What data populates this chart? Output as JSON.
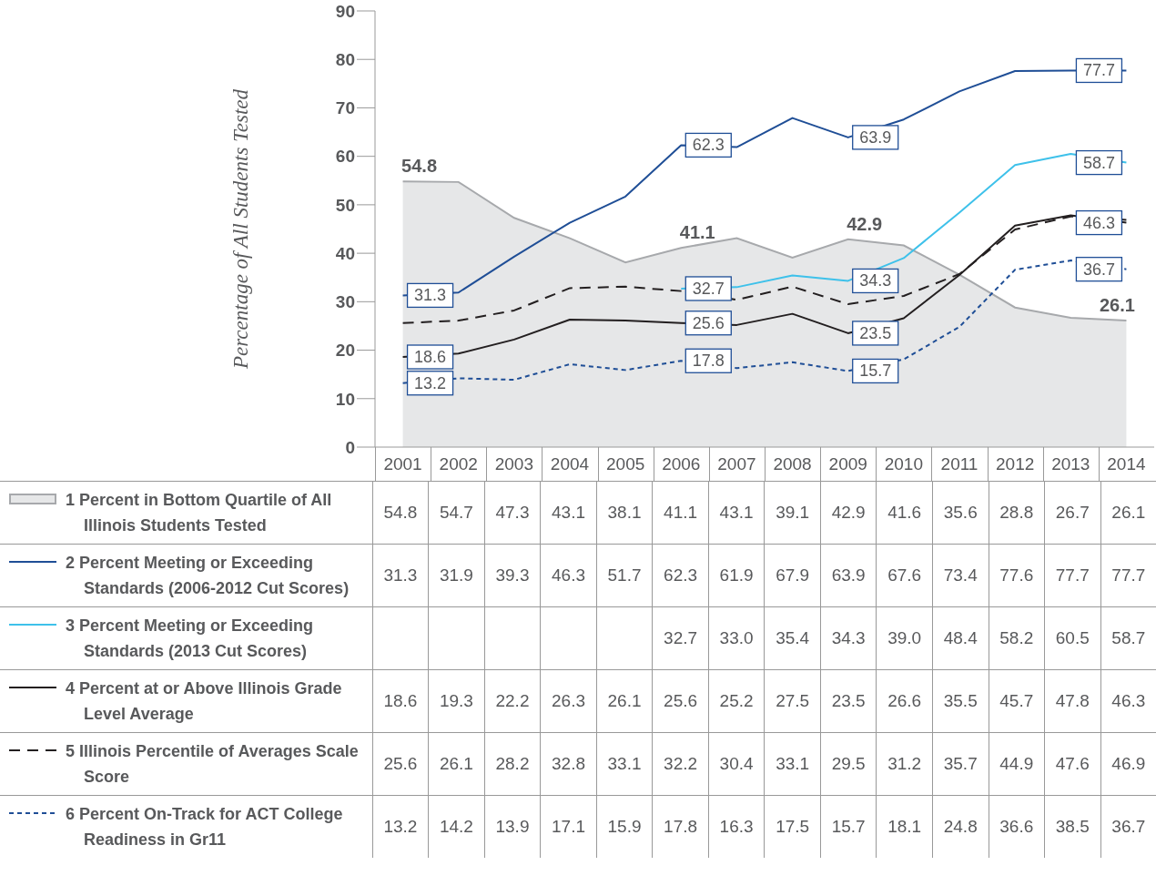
{
  "chart_data": {
    "type": "line",
    "ylabel": "Percentage of All Students Tested",
    "categories": [
      "2001",
      "2002",
      "2003",
      "2004",
      "2005",
      "2006",
      "2007",
      "2008",
      "2009",
      "2010",
      "2011",
      "2012",
      "2013",
      "2014"
    ],
    "ylim": [
      0,
      90
    ],
    "yticks": [
      0,
      10,
      20,
      30,
      40,
      50,
      60,
      70,
      80,
      90
    ],
    "legend": "bottom",
    "data_labels": true,
    "annotations": [
      {
        "text": "54.8",
        "x": "2001",
        "y": 54.8
      },
      {
        "text": "41.1",
        "x": "2006",
        "y": 41.1
      },
      {
        "text": "42.9",
        "x": "2009",
        "y": 42.9
      },
      {
        "text": "26.1",
        "x": "2014",
        "y": 26.1
      },
      {
        "text": "31.3",
        "x": "2001",
        "y": 31.3
      },
      {
        "text": "62.3",
        "x": "2006",
        "y": 62.3
      },
      {
        "text": "63.9",
        "x": "2009",
        "y": 63.9
      },
      {
        "text": "77.7",
        "x": "2014",
        "y": 77.7
      },
      {
        "text": "32.7",
        "x": "2006",
        "y": 32.7
      },
      {
        "text": "34.3",
        "x": "2009",
        "y": 34.3
      },
      {
        "text": "58.7",
        "x": "2014",
        "y": 58.7
      },
      {
        "text": "18.6",
        "x": "2001",
        "y": 18.6
      },
      {
        "text": "25.6",
        "x": "2006",
        "y": 25.6
      },
      {
        "text": "23.5",
        "x": "2009",
        "y": 23.5
      },
      {
        "text": "46.3",
        "x": "2014",
        "y": 46.3
      },
      {
        "text": "13.2",
        "x": "2001",
        "y": 13.2
      },
      {
        "text": "17.8",
        "x": "2006",
        "y": 17.8
      },
      {
        "text": "15.7",
        "x": "2009",
        "y": 15.7
      },
      {
        "text": "36.7",
        "x": "2014",
        "y": 36.7
      }
    ],
    "series": [
      {
        "name": "1 Percent in Bottom Quartile of All Illinois Students Tested",
        "type": "area",
        "color": "#a7a9ac",
        "values": [
          54.8,
          54.7,
          47.3,
          43.1,
          38.1,
          41.1,
          43.1,
          39.1,
          42.9,
          41.6,
          35.6,
          28.8,
          26.7,
          26.1
        ]
      },
      {
        "name": "2 Percent Meeting or Exceeding Standards (2006-2012 Cut Scores)",
        "color": "#1f4e96",
        "line_style": "solid",
        "values": [
          31.3,
          31.9,
          39.3,
          46.3,
          51.7,
          62.3,
          61.9,
          67.9,
          63.9,
          67.6,
          73.4,
          77.6,
          77.7,
          77.7
        ]
      },
      {
        "name": "3 Percent Meeting or Exceeding Standards (2013 Cut Scores)",
        "color": "#3ec1ea",
        "line_style": "solid",
        "values": [
          null,
          null,
          null,
          null,
          null,
          32.7,
          33.0,
          35.4,
          34.3,
          39.0,
          48.4,
          58.2,
          60.5,
          58.7
        ],
        "value_labels": [
          null,
          null,
          null,
          null,
          null,
          "32.7",
          "33.0",
          "35.4",
          "34.3",
          "39.0",
          "48.4",
          "58.2",
          "60.5",
          "58.7"
        ]
      },
      {
        "name": "4 Percent at or Above Illinois Grade Level Average",
        "color": "#231f20",
        "line_style": "solid",
        "values": [
          18.6,
          19.3,
          22.2,
          26.3,
          26.1,
          25.6,
          25.2,
          27.5,
          23.5,
          26.6,
          35.5,
          45.7,
          47.8,
          46.3
        ]
      },
      {
        "name": "5 Illinois Percentile of Averages Scale Score",
        "color": "#231f20",
        "line_style": "dashed",
        "values": [
          25.6,
          26.1,
          28.2,
          32.8,
          33.1,
          32.2,
          30.4,
          33.1,
          29.5,
          31.2,
          35.7,
          44.9,
          47.6,
          46.9
        ]
      },
      {
        "name": "6 Percent On-Track for ACT College Readiness in Gr11",
        "color": "#1f4e96",
        "line_style": "dotted",
        "values": [
          13.2,
          14.2,
          13.9,
          17.1,
          15.9,
          17.8,
          16.3,
          17.5,
          15.7,
          18.1,
          24.8,
          36.6,
          38.5,
          36.7
        ]
      }
    ]
  }
}
